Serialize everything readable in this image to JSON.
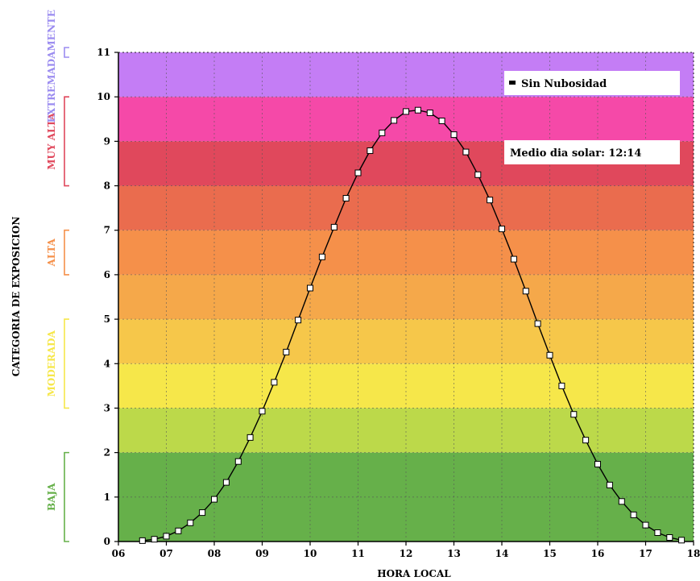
{
  "chart_data": {
    "type": "line",
    "title": "",
    "xlabel": "HORA LOCAL",
    "ylabel": "CATEGORIA DE EXPOSICION",
    "xlim": [
      6,
      18
    ],
    "ylim": [
      0,
      11
    ],
    "x_tick_labels": [
      "06",
      "07",
      "08",
      "09",
      "10",
      "11",
      "12",
      "13",
      "14",
      "15",
      "16",
      "17",
      "18"
    ],
    "y_tick_labels": [
      "0",
      "1",
      "2",
      "3",
      "4",
      "5",
      "6",
      "7",
      "8",
      "9",
      "10",
      "11"
    ],
    "grid": true,
    "legend": {
      "label": "Sin Nubosidad",
      "placement": "top-right"
    },
    "annotation": "Medio dia solar: 12:14",
    "bands": [
      {
        "from": 0,
        "to": 2,
        "color": "#66b04a"
      },
      {
        "from": 2,
        "to": 3,
        "color": "#bcd94a"
      },
      {
        "from": 3,
        "to": 4,
        "color": "#f6e74a"
      },
      {
        "from": 4,
        "to": 5,
        "color": "#f6c74a"
      },
      {
        "from": 5,
        "to": 6,
        "color": "#f5a84a"
      },
      {
        "from": 6,
        "to": 7,
        "color": "#f5904a"
      },
      {
        "from": 7,
        "to": 8,
        "color": "#ea6c4e"
      },
      {
        "from": 8,
        "to": 9,
        "color": "#e0485c"
      },
      {
        "from": 9,
        "to": 10,
        "color": "#f549a8"
      },
      {
        "from": 10,
        "to": 11,
        "color": "#c47df5"
      }
    ],
    "categories": [
      {
        "label": "BAJA",
        "from": 0,
        "to": 2,
        "color": "#66b04a"
      },
      {
        "label": "MODERADA",
        "from": 3,
        "to": 5,
        "color": "#f6e74a"
      },
      {
        "label": "ALTA",
        "from": 6,
        "to": 7,
        "color": "#f5904a"
      },
      {
        "label": "MUY ALTA",
        "from": 8,
        "to": 10,
        "color": "#e0485c"
      },
      {
        "label": "EXTREMADAMENTE",
        "from": 11,
        "to": 11,
        "color": "#9b8cf0"
      }
    ],
    "series": [
      {
        "name": "Sin Nubosidad",
        "x": [
          6.5,
          6.75,
          7.0,
          7.25,
          7.5,
          7.75,
          8.0,
          8.25,
          8.5,
          8.75,
          9.0,
          9.25,
          9.5,
          9.75,
          10.0,
          10.25,
          10.5,
          10.75,
          11.0,
          11.25,
          11.5,
          11.75,
          12.0,
          12.25,
          12.5,
          12.75,
          13.0,
          13.25,
          13.5,
          13.75,
          14.0,
          14.25,
          14.5,
          14.75,
          15.0,
          15.25,
          15.5,
          15.75,
          16.0,
          16.25,
          16.5,
          16.75,
          17.0,
          17.25,
          17.5,
          17.75
        ],
        "values": [
          0.02,
          0.05,
          0.12,
          0.24,
          0.42,
          0.65,
          0.95,
          1.33,
          1.8,
          2.34,
          2.93,
          3.58,
          4.26,
          4.98,
          5.7,
          6.4,
          7.07,
          7.72,
          8.29,
          8.79,
          9.19,
          9.47,
          9.67,
          9.7,
          9.64,
          9.46,
          9.15,
          8.76,
          8.25,
          7.68,
          7.03,
          6.35,
          5.63,
          4.9,
          4.19,
          3.5,
          2.86,
          2.28,
          1.74,
          1.27,
          0.9,
          0.6,
          0.37,
          0.2,
          0.09,
          0.03
        ]
      }
    ]
  }
}
